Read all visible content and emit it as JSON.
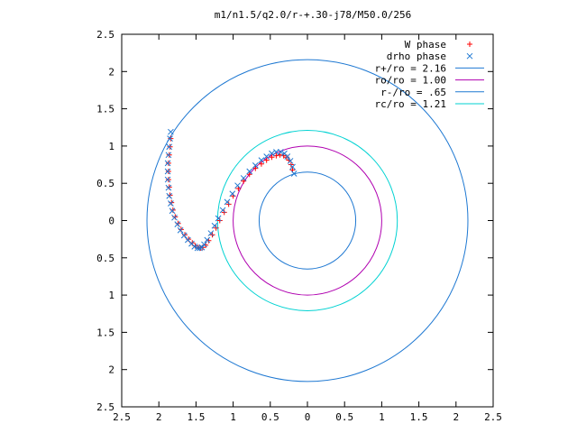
{
  "chart_data": {
    "type": "scatter",
    "title": "m1/n1.5/q2.0/r-+.30-j78/M50.0/256",
    "xlabel": "",
    "ylabel": "",
    "xlim": [
      -2.5,
      2.5
    ],
    "ylim": [
      -2.5,
      2.5
    ],
    "grid": false,
    "legend_position": "top-right",
    "x_ticks": [
      -2.5,
      -2,
      -1.5,
      -1,
      -0.5,
      0,
      0.5,
      1,
      1.5,
      2,
      2.5
    ],
    "y_ticks": [
      -2.5,
      -2,
      -1.5,
      -1,
      -0.5,
      0,
      0.5,
      1,
      1.5,
      2,
      2.5
    ],
    "x_tick_labels": [
      "2.5",
      "2",
      "1.5",
      "1",
      "0.5",
      "0",
      "0.5",
      "1",
      "1.5",
      "2",
      "2.5"
    ],
    "y_tick_labels": [
      "2.5",
      "2",
      "1.5",
      "1",
      "0.5",
      "0",
      "0.5",
      "1",
      "1.5",
      "2",
      "2.5"
    ],
    "series": [
      {
        "name": "W phase",
        "kind": "points",
        "marker": "plus",
        "color": "#ff0000",
        "x": [
          -0.2,
          -0.22,
          -0.25,
          -0.28,
          -0.32,
          -0.37,
          -0.42,
          -0.48,
          -0.55,
          -0.62,
          -0.7,
          -0.78,
          -0.86,
          -0.93,
          -1.0,
          -1.06,
          -1.12,
          -1.18,
          -1.23,
          -1.28,
          -1.33,
          -1.37,
          -1.41,
          -1.44,
          -1.47,
          -1.51,
          -1.55,
          -1.6,
          -1.65,
          -1.7,
          -1.74,
          -1.78,
          -1.81,
          -1.83,
          -1.85,
          -1.86,
          -1.87,
          -1.87,
          -1.87,
          -1.86,
          -1.85,
          -1.84
        ],
        "y": [
          0.68,
          0.75,
          0.81,
          0.85,
          0.87,
          0.88,
          0.87,
          0.85,
          0.81,
          0.76,
          0.7,
          0.62,
          0.53,
          0.43,
          0.33,
          0.22,
          0.11,
          0.0,
          -0.1,
          -0.19,
          -0.27,
          -0.33,
          -0.36,
          -0.37,
          -0.36,
          -0.34,
          -0.3,
          -0.25,
          -0.19,
          -0.12,
          -0.04,
          0.05,
          0.14,
          0.24,
          0.34,
          0.45,
          0.55,
          0.66,
          0.77,
          0.88,
          0.99,
          1.1
        ]
      },
      {
        "name": "drho phase",
        "kind": "points",
        "marker": "cross",
        "color": "#1e78d2",
        "x": [
          -0.18,
          -0.2,
          -0.23,
          -0.27,
          -0.31,
          -0.36,
          -0.42,
          -0.48,
          -0.55,
          -0.62,
          -0.7,
          -0.78,
          -0.86,
          -0.94,
          -1.01,
          -1.08,
          -1.14,
          -1.2,
          -1.25,
          -1.3,
          -1.35,
          -1.39,
          -1.42,
          -1.45,
          -1.48,
          -1.52,
          -1.56,
          -1.61,
          -1.66,
          -1.71,
          -1.75,
          -1.79,
          -1.82,
          -1.84,
          -1.86,
          -1.87,
          -1.88,
          -1.88,
          -1.88,
          -1.87,
          -1.86,
          -1.85,
          -1.84
        ],
        "y": [
          0.63,
          0.72,
          0.8,
          0.86,
          0.9,
          0.92,
          0.92,
          0.9,
          0.86,
          0.81,
          0.74,
          0.66,
          0.57,
          0.47,
          0.36,
          0.25,
          0.14,
          0.03,
          -0.07,
          -0.17,
          -0.26,
          -0.32,
          -0.36,
          -0.37,
          -0.37,
          -0.35,
          -0.31,
          -0.26,
          -0.2,
          -0.13,
          -0.05,
          0.04,
          0.13,
          0.23,
          0.33,
          0.44,
          0.55,
          0.66,
          0.77,
          0.88,
          0.99,
          1.1,
          1.19
        ]
      },
      {
        "name": "r+/ro = 2.16",
        "kind": "circle",
        "radius": 2.16,
        "color": "#1e78d2"
      },
      {
        "name": "ro/ro = 1.00",
        "kind": "circle",
        "radius": 1.0,
        "color": "#b000b0"
      },
      {
        "name": "r-/ro = .65",
        "kind": "circle",
        "radius": 0.65,
        "color": "#1e78d2"
      },
      {
        "name": "rc/ro = 1.21",
        "kind": "circle",
        "radius": 1.21,
        "color": "#00d2d2"
      }
    ]
  }
}
